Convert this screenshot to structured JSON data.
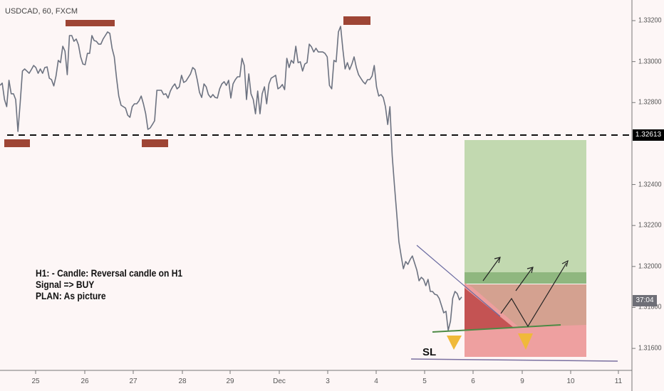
{
  "header": {
    "symbol": "USDCAD, 60, FXCM"
  },
  "note": {
    "lines": [
      "H1: - Candle: Reversal candle on H1",
      "Signal => BUY",
      "PLAN: As picture"
    ]
  },
  "annotations": {
    "stop_loss_label": "SL",
    "level_label": "1.32613",
    "countdown": "37:04"
  },
  "colors": {
    "line": "#6c7280",
    "marker": "#9e4535",
    "target": "#c2d9b0",
    "target_dark": "#8fb77f",
    "entry": "#d4a190",
    "stop": "#eea0a0",
    "triangle": "#f0b93a"
  },
  "chart_data": {
    "type": "line",
    "title": "USDCAD, 60, FXCM",
    "interval": "60 min",
    "ylim": [
      1.3146,
      1.3338
    ],
    "y_ticks": [
      "1.33200",
      "1.33000",
      "1.32800",
      "1.32400",
      "1.32200",
      "1.32000",
      "1.31800",
      "1.31600"
    ],
    "x_ticks": [
      "25",
      "26",
      "27",
      "28",
      "29",
      "Dec",
      "3",
      "4",
      "5",
      "6",
      "9",
      "10",
      "11"
    ],
    "horizontal_level": 1.32613,
    "grid": false,
    "values": [
      1.32884,
      1.32895,
      1.32815,
      1.3278,
      1.32909,
      1.32843,
      1.32843,
      1.32815,
      1.32659,
      1.32797,
      1.32954,
      1.32964,
      1.32954,
      1.32943,
      1.32961,
      1.32981,
      1.32971,
      1.32943,
      1.32964,
      1.32943,
      1.32971,
      1.32974,
      1.32919,
      1.32912,
      1.32881,
      1.32929,
      1.33006,
      1.32995,
      1.33075,
      1.33051,
      1.32936,
      1.33127,
      1.33127,
      1.33099,
      1.3311,
      1.33082,
      1.33023,
      1.32988,
      1.32985,
      1.3304,
      1.3304,
      1.33127,
      1.33103,
      1.33099,
      1.33085,
      1.33085,
      1.3311,
      1.33127,
      1.33145,
      1.33138,
      1.33065,
      1.33023,
      1.32919,
      1.32832,
      1.32787,
      1.3278,
      1.32773,
      1.32738,
      1.32728,
      1.3278,
      1.32794,
      1.32794,
      1.32808,
      1.32832,
      1.32794,
      1.32745,
      1.32669,
      1.32676,
      1.32693,
      1.32711,
      1.3286,
      1.3286,
      1.3286,
      1.32839,
      1.32843,
      1.32822,
      1.32856,
      1.32877,
      1.32891,
      1.32867,
      1.32877,
      1.32933,
      1.32898,
      1.32905,
      1.32922,
      1.3294,
      1.32971,
      1.32961,
      1.32912,
      1.3285,
      1.32825,
      1.32891,
      1.32877,
      1.32839,
      1.32825,
      1.32839,
      1.32825,
      1.32822,
      1.32867,
      1.32891,
      1.32902,
      1.32884,
      1.32909,
      1.32822,
      1.32891,
      1.32912,
      1.32926,
      1.32926,
      1.33016,
      1.32981,
      1.32815,
      1.3294,
      1.32843,
      1.32815,
      1.32745,
      1.32856,
      1.32745,
      1.32843,
      1.32877,
      1.32794,
      1.32891,
      1.32919,
      1.32926,
      1.32933,
      1.32867,
      1.32874,
      1.32888,
      1.32863,
      1.33016,
      1.32971,
      1.33006,
      1.32992,
      1.33075,
      1.32995,
      1.32999,
      1.32954,
      1.32988,
      1.32995,
      1.33085,
      1.33072,
      1.33047,
      1.33065,
      1.33047,
      1.33047,
      1.33047,
      1.3304,
      1.33023,
      1.32884,
      1.32867,
      1.33006,
      1.32999,
      1.33145,
      1.33172,
      1.33058,
      1.32964,
      1.32995,
      1.32961,
      1.32988,
      1.33023,
      1.32971,
      1.32936,
      1.32919,
      1.32902,
      1.32891,
      1.32912,
      1.32912,
      1.32929,
      1.32981,
      1.32877,
      1.32832,
      1.32839,
      1.32825,
      1.3278,
      1.32693,
      1.3278,
      1.32541,
      1.32398,
      1.3226,
      1.32121,
      1.32051,
      1.31989,
      1.32024,
      1.3201,
      1.32034,
      1.32051,
      1.32017,
      1.31982,
      1.3193,
      1.31947,
      1.31937,
      1.31906,
      1.31937,
      1.31878,
      1.31878,
      1.31864,
      1.31861,
      1.31844,
      1.31809,
      1.31774,
      1.31781,
      1.31688,
      1.31733,
      1.31844,
      1.31878,
      1.31868,
      1.31837,
      1.31851
    ]
  }
}
